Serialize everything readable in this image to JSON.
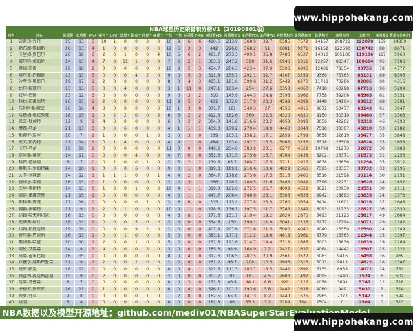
{
  "watermark_top": "www.hippohekang.com",
  "watermark_bottom": "www.hippohekang.com",
  "title": "NBA球星历史荣誉积分榜V1（20190801版）",
  "footer": "NBA数据以及模型开源地址：github.com/mediv01/NBASuperStarEvaluationModel",
  "colors": {
    "header_green": "#538135",
    "total_text_red": "#9c1f1f",
    "watermark_bg": "#141414",
    "groups": {
      "g": "#d7e4bc",
      "b": "#c9d3eb",
      "p": "#efc7c7",
      "y": "#fdf0cd",
      "bg": "#ccd7e9",
      "sa": "#f6cdbf",
      "pe": "#fbd7a9",
      "pl": "#f5f1ea",
      "to": "#d8d8ef",
      "co": "#f2f0ec"
    }
  },
  "chart_data": {
    "type": "table",
    "title": "NBA球星历史荣誉积分榜V1（20190801版）",
    "columns": [
      "排名",
      "姓名",
      "常规赛",
      "季后赛",
      "MVP",
      "得分王",
      "DPOY",
      "篮板王",
      "助攻王",
      "抢断王",
      "盖帽王",
      "一阵",
      "一防",
      "总冠军",
      "FMVP",
      "常规赛PER",
      "常规赛WS",
      "季后赛PER",
      "季后赛WS",
      "常规赛积分",
      "季后赛积分",
      "数据积分",
      "荣誉积分",
      "总积分",
      "荣誉系数",
      "赛季平均积分"
    ],
    "rows": [
      [
        1,
        "迈克尔-乔丹",
        15,
        13,
        5,
        10,
        1,
        0,
        0,
        3,
        0,
        10,
        9,
        6,
        6,
        "410.6",
        "213.9",
        "368.9",
        "39.7",
        6585,
        7572,
        14157,
        208721,
        222878,
        159,
        14859
      ],
      [
        2,
        "勒布朗-詹姆斯",
        16,
        13,
        4,
        1,
        0,
        0,
        0,
        0,
        0,
        12,
        6,
        3,
        3,
        "442",
        "226.8",
        "368.2",
        "51",
        6881,
        9271,
        16152,
        122590,
        138742,
        88,
        8671
      ],
      [
        3,
        "卡里姆-贾巴尔",
        20,
        18,
        6,
        2,
        0,
        1,
        0,
        0,
        4,
        10,
        5,
        6,
        2,
        "481.7",
        "273.3",
        "409.5",
        "35.8",
        7483,
        6527,
        14010,
        105186,
        119196,
        117,
        5960
      ],
      [
        4,
        "威尔特-张伯伦",
        14,
        13,
        4,
        7,
        0,
        11,
        1,
        0,
        0,
        7,
        2,
        2,
        1,
        "363.6",
        "247.2",
        "308",
        "31.6",
        6946,
        5311,
        12257,
        88347,
        100604,
        95,
        7186
      ],
      [
        5,
        "蒂姆-邓肯",
        19,
        18,
        2,
        0,
        0,
        0,
        0,
        0,
        0,
        10,
        8,
        5,
        3,
        "454.7",
        "206.3",
        "423.4",
        "37.9",
        5506,
        6896,
        12401,
        78354,
        90755,
        78,
        4777
      ],
      [
        6,
        "埃尔文-约翰逊",
        13,
        13,
        3,
        0,
        0,
        0,
        4,
        2,
        0,
        9,
        0,
        5,
        3,
        "311.8",
        "155.7",
        "292.1",
        "32.7",
        4107,
        5259,
        9366,
        73765,
        83131,
        89,
        6395
      ],
      [
        7,
        "沙奎尔-奥尼尔",
        19,
        17,
        1,
        2,
        0,
        0,
        0,
        0,
        0,
        8,
        0,
        4,
        3,
        "485.1",
        "181.6",
        "399.6",
        "31.2",
        5449,
        6270,
        11718,
        70286,
        82005,
        60,
        4316
      ],
      [
        8,
        "比尔-拉塞尔",
        13,
        13,
        5,
        0,
        0,
        4,
        0,
        0,
        0,
        3,
        1,
        11,
        0,
        "247.1",
        "163.4",
        "254",
        "27.6",
        3358,
        4060,
        7418,
        60298,
        67716,
        96,
        5209
      ],
      [
        9,
        "拉里-伯德",
        13,
        12,
        3,
        0,
        0,
        0,
        0,
        0,
        0,
        9,
        0,
        3,
        2,
        "300",
        "145.9",
        "244.3",
        "24.8",
        3796,
        3962,
        7758,
        59206,
        66965,
        61,
        5151
      ],
      [
        10,
        "科比-布莱恩特",
        20,
        15,
        1,
        2,
        0,
        0,
        0,
        0,
        0,
        11,
        9,
        5,
        2,
        "431",
        "172.6",
        "317.9",
        "28.3",
        4549,
        4899,
        9448,
        54164,
        63612,
        68,
        3181
      ],
      [
        11,
        "朱利叶斯-欧文",
        16,
        16,
        4,
        3,
        0,
        0,
        0,
        0,
        0,
        10,
        1,
        3,
        0,
        "371.7",
        "181",
        "340.3",
        "27",
        4756,
        4915,
        9672,
        53477,
        63149,
        61,
        3947
      ],
      [
        12,
        "哈基姆-奥拉朱旺",
        18,
        15,
        1,
        0,
        2,
        2,
        0,
        0,
        3,
        6,
        5,
        2,
        2,
        "412.3",
        "162.6",
        "360",
        "22.5",
        4320,
        4830,
        9150,
        50310,
        59460,
        57,
        3303
      ],
      [
        13,
        "凯文-杜兰特",
        12,
        9,
        1,
        4,
        0,
        0,
        0,
        0,
        0,
        6,
        0,
        2,
        2,
        "304.3",
        "141.8",
        "216.6",
        "23.2",
        4058,
        3998,
        8056,
        42262,
        50318,
        46,
        4193
      ],
      [
        14,
        "摩西-马龙",
        21,
        13,
        3,
        0,
        0,
        6,
        0,
        0,
        0,
        4,
        1,
        1,
        1,
        "439.3",
        "179.2",
        "279.4",
        "14.9",
        4463,
        3048,
        7510,
        38307,
        45818,
        53,
        2182
      ],
      [
        15,
        "斯蒂芬-库里",
        10,
        7,
        2,
        1,
        0,
        0,
        0,
        1,
        0,
        3,
        0,
        3,
        0,
        "239",
        "103.1",
        "158.2",
        "17.1",
        2859,
        2799,
        5658,
        32819,
        38477,
        35,
        3848
      ],
      [
        16,
        "凯文-加内特",
        21,
        14,
        1,
        0,
        1,
        4,
        0,
        0,
        0,
        4,
        9,
        1,
        0,
        "484",
        "193.4",
        "292.7",
        "16.5",
        5065,
        3253,
        8318,
        26506,
        34824,
        35,
        1658
      ],
      [
        17,
        "卡尔-马龙",
        19,
        19,
        2,
        0,
        0,
        0,
        0,
        0,
        0,
        11,
        3,
        0,
        0,
        "449.2",
        "234.6",
        "383.9",
        "23.1",
        6277,
        4522,
        10799,
        21273,
        32072,
        30,
        1688
      ],
      [
        18,
        "克里斯-保罗",
        14,
        11,
        0,
        0,
        0,
        0,
        4,
        6,
        0,
        4,
        7,
        0,
        0,
        "351.6",
        "171.5",
        "275.6",
        "15.7",
        4764,
        3438,
        8202,
        23371,
        31573,
        31,
        2255
      ],
      [
        19,
        "科怀-伦纳德",
        8,
        7,
        0,
        0,
        2,
        0,
        0,
        1,
        0,
        2,
        3,
        2,
        2,
        "179.8",
        "65.7",
        "160.7",
        "17.5",
        1711,
        2927,
        4638,
        26656,
        31294,
        35,
        3912
      ],
      [
        20,
        "奥斯卡-罗伯特森",
        14,
        10,
        1,
        0,
        0,
        0,
        6,
        0,
        0,
        9,
        0,
        1,
        0,
        "319.3",
        "189.1",
        "216.6",
        "13.6",
        4829,
        2566,
        7395,
        23337,
        30732,
        33,
        2195
      ],
      [
        21,
        "大卫-罗宾逊",
        14,
        12,
        1,
        1,
        1,
        1,
        0,
        0,
        1,
        4,
        4,
        2,
        0,
        "364.7",
        "178.8",
        "273.6",
        "17.5",
        5116,
        3400,
        8516,
        21598,
        30114,
        30,
        2151
      ],
      [
        22,
        "德维恩-韦德",
        16,
        13,
        0,
        1,
        0,
        0,
        0,
        0,
        0,
        2,
        0,
        3,
        1,
        "366",
        "120.7",
        "280.5",
        "21.6",
        3408,
        3989,
        7396,
        22231,
        29628,
        24,
        1852
      ],
      [
        23,
        "杰里-韦斯特",
        14,
        13,
        0,
        1,
        0,
        0,
        1,
        0,
        0,
        10,
        4,
        1,
        1,
        "319.3",
        "162.6",
        "272.5",
        "26.7",
        4099,
        4522,
        8621,
        20930,
        29551,
        30,
        2111
      ],
      [
        24,
        "德克-诺维茨基",
        21,
        15,
        1,
        0,
        0,
        0,
        0,
        0,
        0,
        4,
        0,
        1,
        1,
        "447.7",
        "206.4",
        "346.9",
        "23.1",
        5306,
        4636,
        9942,
        18893,
        28835,
        24,
        1373
      ],
      [
        25,
        "斯科蒂-皮蓬",
        17,
        16,
        0,
        0,
        0,
        0,
        0,
        1,
        0,
        3,
        8,
        6,
        0,
        "305",
        "125.1",
        "277.8",
        "23.5",
        2760,
        3654,
        6414,
        21602,
        28016,
        37,
        1648
      ],
      [
        26,
        "鲍勃-佩蒂特",
        11,
        9,
        2,
        2,
        0,
        1,
        0,
        0,
        0,
        10,
        0,
        1,
        0,
        "278.6",
        "136.1",
        "197.5",
        "11.7",
        3745,
        2349,
        6093,
        21733,
        27827,
        36,
        2530
      ],
      [
        27,
        "约翰-哈夫利切克",
        16,
        13,
        0,
        0,
        0,
        0,
        0,
        0,
        0,
        4,
        5,
        8,
        1,
        "277.3",
        "131.7",
        "219.4",
        "19.2",
        2624,
        2870,
        5493,
        21123,
        26617,
        49,
        1664
      ],
      [
        28,
        "史蒂夫-纳什",
        18,
        12,
        2,
        0,
        0,
        0,
        5,
        0,
        0,
        3,
        0,
        0,
        0,
        "334.8",
        "130",
        "199.1",
        "11.9",
        3041,
        2235,
        5277,
        17794,
        23071,
        29,
        1282
      ],
      [
        29,
        "约翰-斯托克顿",
        19,
        19,
        0,
        0,
        0,
        0,
        9,
        2,
        0,
        2,
        0,
        0,
        0,
        "407.9",
        "207.6",
        "372.6",
        "21.5",
        5000,
        4040,
        9040,
        13550,
        22590,
        24,
        1189
      ],
      [
        30,
        "查尔斯-巴克利",
        16,
        13,
        1,
        0,
        0,
        1,
        0,
        0,
        0,
        5,
        0,
        0,
        0,
        "387.1",
        "177.1",
        "312.2",
        "19.6",
        4818,
        3961,
        8779,
        13565,
        22344,
        15,
        1397
      ],
      [
        31,
        "詹姆斯-哈登",
        10,
        10,
        1,
        2,
        0,
        0,
        1,
        0,
        0,
        5,
        0,
        0,
        0,
        "237.8",
        "121.8",
        "214.7",
        "14.4",
        3318,
        2685,
        6003,
        15636,
        21639,
        19,
        2164
      ],
      [
        32,
        "阿伦-艾弗森",
        14,
        8,
        1,
        4,
        0,
        0,
        0,
        3,
        0,
        3,
        0,
        0,
        0,
        "285.8",
        "98.9",
        "164.9",
        "7.2",
        2427,
        1637,
        4064,
        14442,
        18507,
        25,
        1322
      ],
      [
        33,
        "马努-吉诺比利",
        16,
        15,
        0,
        0,
        0,
        0,
        0,
        0,
        0,
        0,
        0,
        4,
        0,
        "317.3",
        "106.5",
        "282.5",
        "20.9",
        2561,
        3522,
        6083,
        9416,
        15498,
        16,
        969
      ],
      [
        34,
        "拉塞尔-威斯布鲁克",
        11,
        9,
        1,
        2,
        0,
        0,
        2,
        0,
        0,
        2,
        0,
        0,
        0,
        "261.2",
        "96.7",
        "208",
        "10.5",
        2696,
        2315,
        5011,
        9811,
        14822,
        18,
        1347
      ],
      [
        35,
        "托尼-帕克",
        18,
        17,
        0,
        0,
        0,
        0,
        0,
        0,
        0,
        0,
        0,
        4,
        1,
        "321.5",
        "111.3",
        "283.7",
        "13.5",
        2442,
        2692,
        5135,
        8938,
        14072,
        24,
        782
      ],
      [
        36,
        "特雷西-麦克格雷迪",
        15,
        9,
        0,
        2,
        0,
        0,
        0,
        0,
        0,
        2,
        0,
        0,
        0,
        "307.2",
        "97",
        "181",
        "4.5",
        2603,
        1492,
        4095,
        3440,
        7534,
        6,
        502
      ],
      [
        37,
        "克莱-汤普森",
        8,
        7,
        0,
        0,
        0,
        0,
        0,
        0,
        0,
        0,
        0,
        3,
        0,
        "131.3",
        "46.8",
        "94.1",
        "8.6",
        929,
        1127,
        2056,
        3691,
        5747,
        12,
        718
      ],
      [
        38,
        "卡梅罗-安东尼",
        16,
        11,
        0,
        1,
        0,
        0,
        0,
        0,
        0,
        0,
        0,
        0,
        0,
        "326.1",
        "101.1",
        "193.6",
        "5.8",
        2442,
        1638,
        4080,
        949,
        5030,
        2,
        314
      ],
      [
        39,
        "保罗-乔治",
        9,
        8,
        0,
        0,
        0,
        0,
        0,
        1,
        0,
        1,
        2,
        0,
        0,
        "162.5",
        "65.3",
        "141.3",
        "8.2",
        1440,
        1525,
        2965,
        2377,
        5342,
        5,
        594
      ],
      [
        40,
        "姚明",
        8,
        4,
        0,
        0,
        0,
        0,
        0,
        0,
        0,
        0,
        0,
        0,
        0,
        "182.8",
        "66",
        "85.3",
        "3.2",
        1709,
        794,
        2504,
        0,
        2504,
        0,
        313
      ]
    ]
  }
}
